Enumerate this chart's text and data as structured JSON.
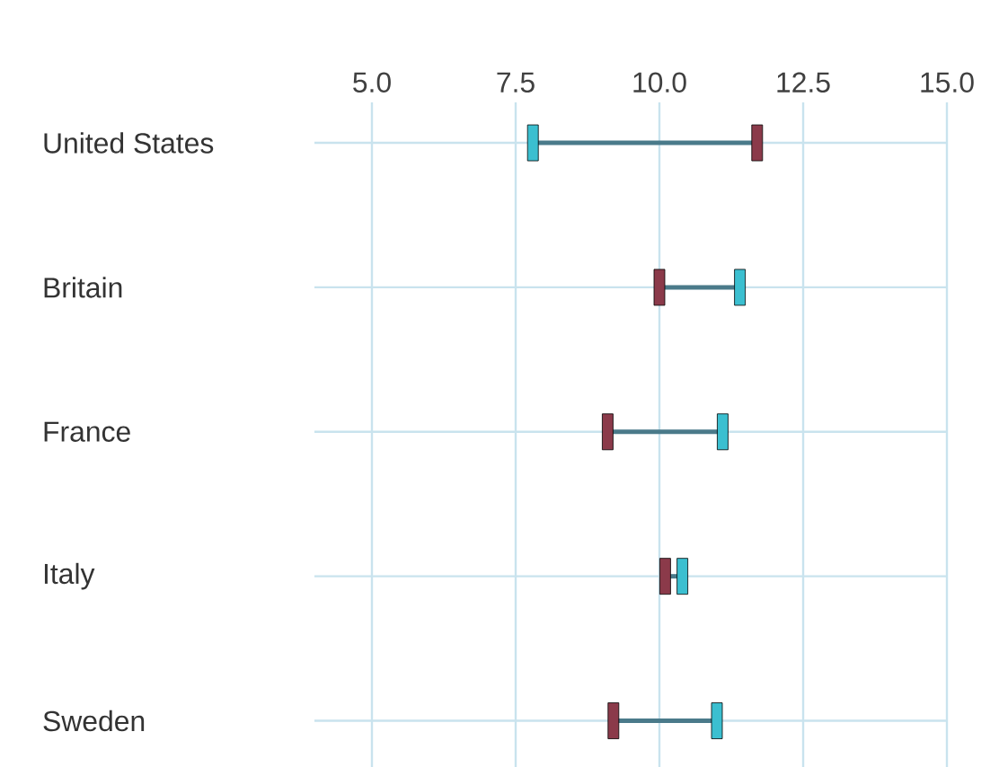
{
  "chart_data": {
    "type": "scatter",
    "orientation": "horizontal",
    "categories": [
      "United States",
      "Britain",
      "France",
      "Italy",
      "Sweden"
    ],
    "series": [
      {
        "color": "#3bbfd0",
        "values": [
          7.8,
          11.4,
          11.1,
          10.4,
          11.0
        ]
      },
      {
        "color": "#8b3a4a",
        "values": [
          11.7,
          10.0,
          9.1,
          10.1,
          9.2
        ]
      }
    ],
    "xlim": [
      4,
      15
    ],
    "xticks": [
      {
        "value": 5,
        "label": "5.0"
      },
      {
        "value": 7.5,
        "label": "7.5"
      },
      {
        "value": 10,
        "label": "10.0"
      },
      {
        "value": 12.5,
        "label": "12.5"
      },
      {
        "value": 15,
        "label": "15.0"
      }
    ],
    "grid": true
  }
}
